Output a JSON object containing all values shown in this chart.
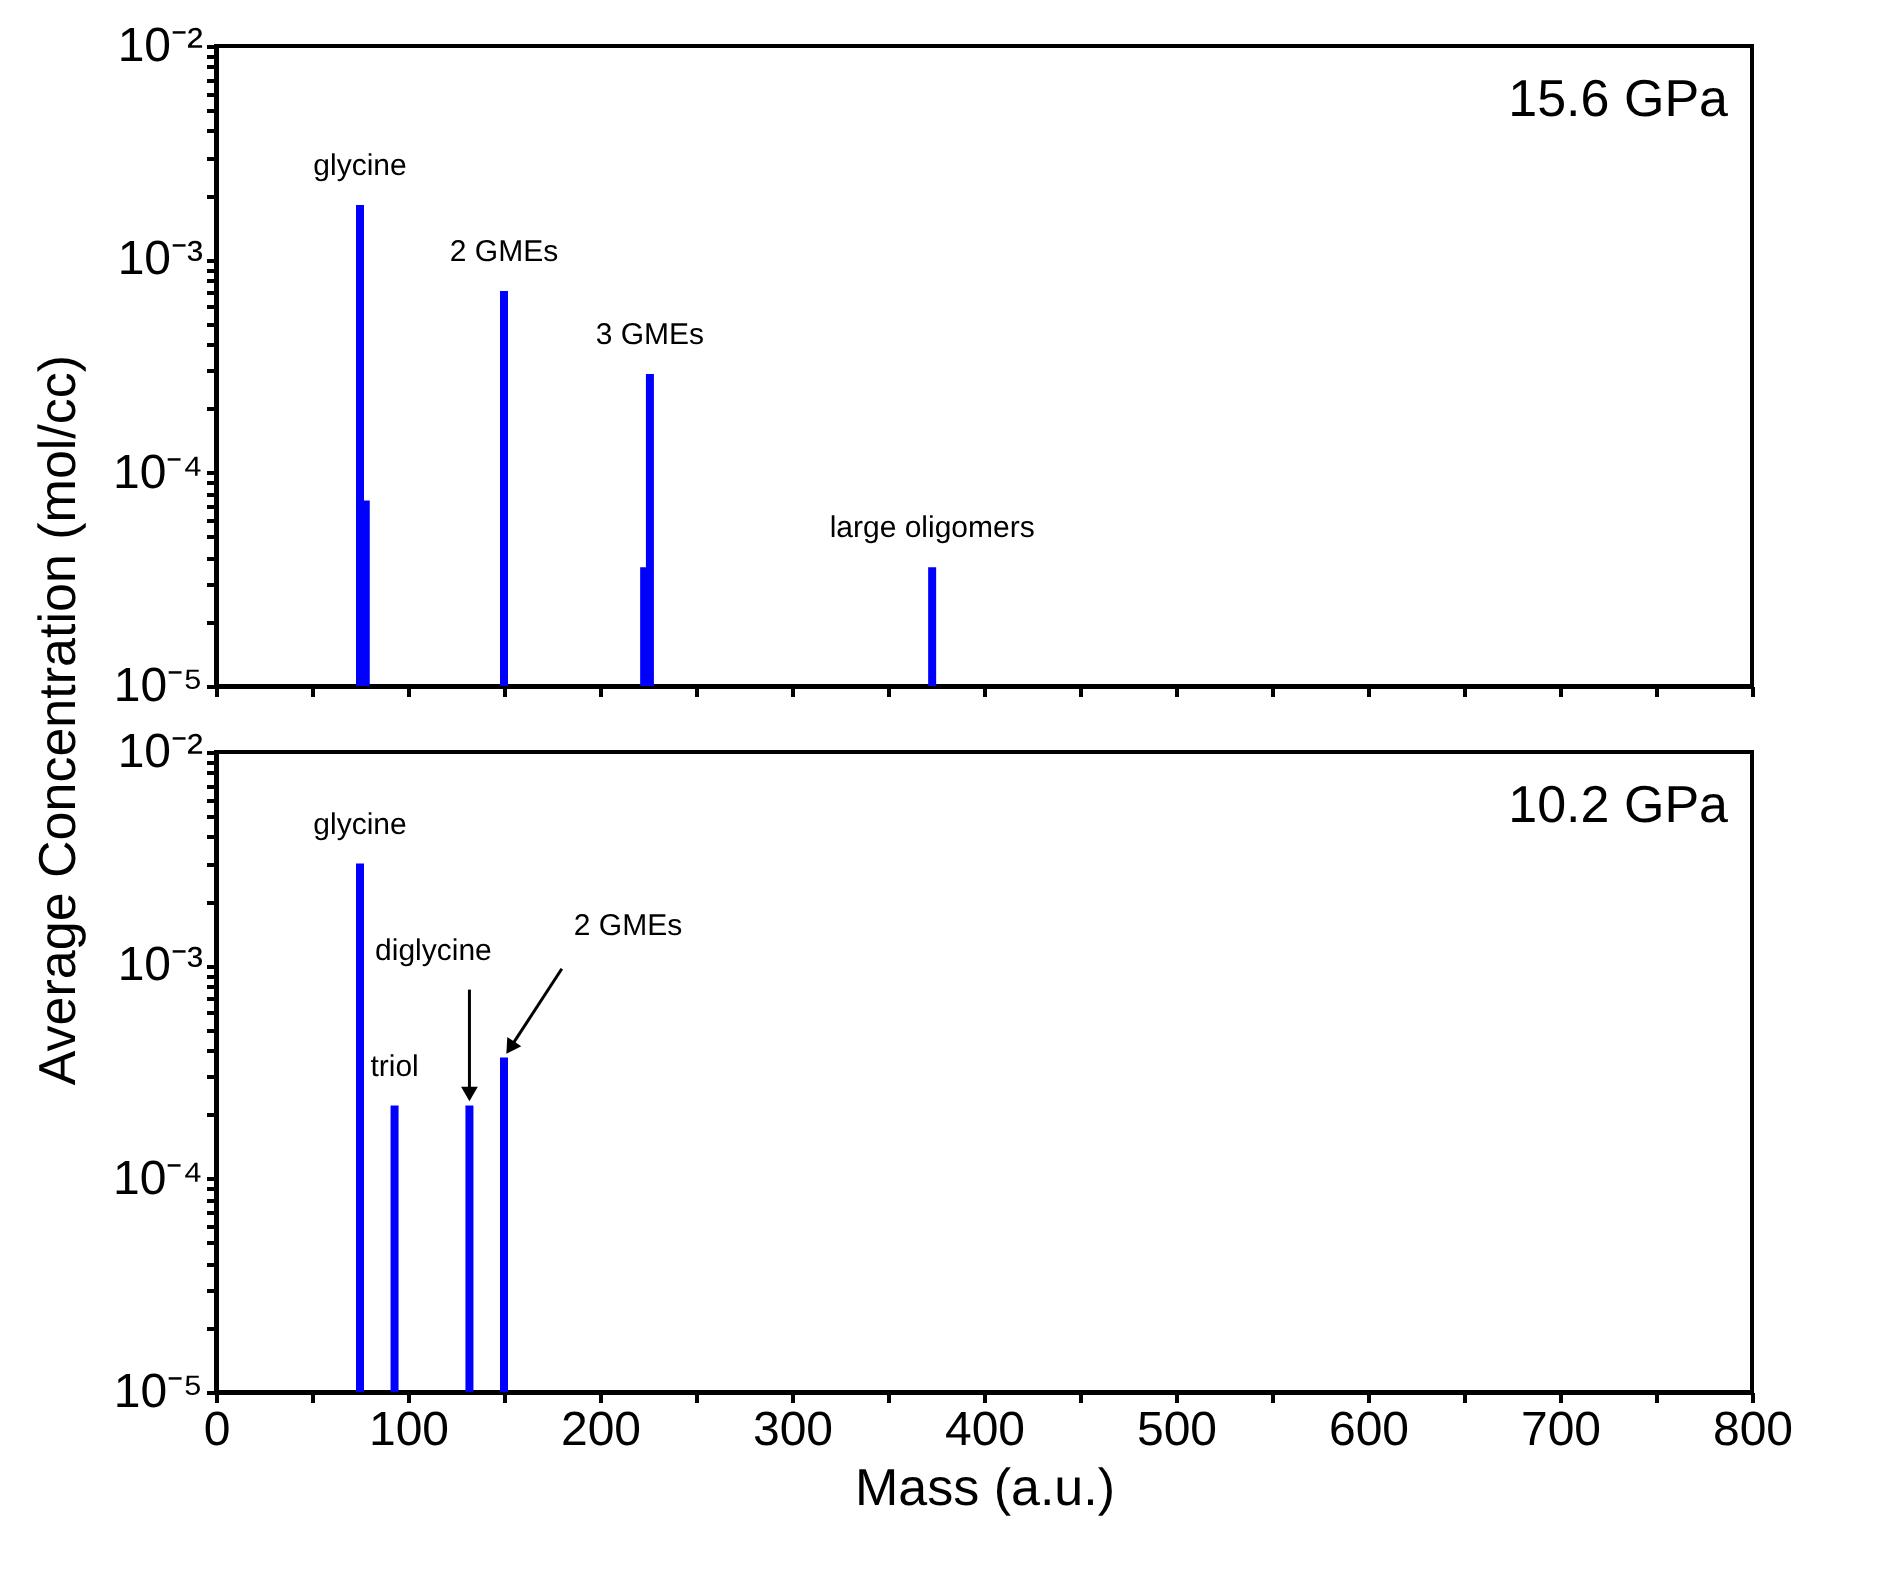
{
  "chart_data": [
    {
      "type": "bar",
      "ylabel": "Average Concentration (mol/cc)",
      "x": [
        75,
        78,
        150,
        223,
        226,
        373
      ],
      "values": [
        0.0018,
        7.4e-05,
        0.00071,
        3.6e-05,
        0.00029,
        3.6e-05
      ],
      "color": "#0000ff",
      "xlim": [
        0,
        800
      ],
      "xticks": [
        0,
        {
          "value": 50,
          "label": null
        },
        100,
        {
          "value": 150,
          "label": null
        },
        200,
        {
          "value": 250,
          "label": null
        },
        300,
        {
          "value": 350,
          "label": null
        },
        400,
        {
          "value": 450,
          "label": null
        },
        500,
        {
          "value": 550,
          "label": null
        },
        600,
        {
          "value": 650,
          "label": null
        },
        700,
        {
          "value": 750,
          "label": null
        },
        800
      ],
      "ylim": [
        1e-05,
        0.01
      ],
      "log": true,
      "yticks": [
        {
          "value": 1e-05,
          "label": "10⁻⁵"
        },
        {
          "value": 2e-05,
          "label": null
        },
        {
          "value": 3e-05,
          "label": null
        },
        {
          "value": 4e-05,
          "label": null
        },
        {
          "value": 5e-05,
          "label": null
        },
        {
          "value": 6e-05,
          "label": null
        },
        {
          "value": 7e-05,
          "label": null
        },
        {
          "value": 8e-05,
          "label": null
        },
        {
          "value": 9e-05,
          "label": null
        },
        {
          "value": 0.0001,
          "label": "10⁻⁴"
        },
        {
          "value": 0.0002,
          "label": null
        },
        {
          "value": 0.0003,
          "label": null
        },
        {
          "value": 0.0004,
          "label": null
        },
        {
          "value": 0.0005,
          "label": null
        },
        {
          "value": 0.0006,
          "label": null
        },
        {
          "value": 0.0007,
          "label": null
        },
        {
          "value": 0.0008,
          "label": null
        },
        {
          "value": 0.0009,
          "label": null
        },
        {
          "value": 0.001,
          "label": "10⁻³"
        },
        {
          "value": 0.002,
          "label": null
        },
        {
          "value": 0.003,
          "label": null
        },
        {
          "value": 0.004,
          "label": null
        },
        {
          "value": 0.005,
          "label": null
        },
        {
          "value": 0.006,
          "label": null
        },
        {
          "value": 0.007,
          "label": null
        },
        {
          "value": 0.008,
          "label": null
        },
        {
          "value": 0.009,
          "label": null
        },
        {
          "value": 0.01,
          "label": "10⁻²"
        }
      ],
      "tick_labels": "y",
      "grid": false,
      "annotations": [
        {
          "text": "glycine",
          "x": 75,
          "y": 0.0018
        },
        {
          "text": "2 GMEs",
          "x": 150,
          "y": 0.00071
        },
        {
          "text": "3 GMEs",
          "x": 226,
          "y": 0.00029
        },
        {
          "text": "large oligomers",
          "x": 373,
          "y": 3.6e-05
        },
        "15.6 GPa"
      ]
    },
    {
      "type": "bar",
      "xlabel": "Mass (a.u.)",
      "x": [
        75,
        93,
        132,
        150
      ],
      "values": [
        0.003,
        0.00022,
        0.00022,
        0.00037
      ],
      "color": "#0000ff",
      "xlim": [
        0,
        800
      ],
      "xticks": [
        0,
        {
          "value": 50,
          "label": null
        },
        100,
        {
          "value": 150,
          "label": null
        },
        200,
        {
          "value": 250,
          "label": null
        },
        300,
        {
          "value": 350,
          "label": null
        },
        400,
        {
          "value": 450,
          "label": null
        },
        500,
        {
          "value": 550,
          "label": null
        },
        600,
        {
          "value": 650,
          "label": null
        },
        700,
        {
          "value": 750,
          "label": null
        },
        800
      ],
      "ylim": [
        1e-05,
        0.01
      ],
      "log": true,
      "yticks": [
        {
          "value": 1e-05,
          "label": "10⁻⁵"
        },
        {
          "value": 2e-05,
          "label": null
        },
        {
          "value": 3e-05,
          "label": null
        },
        {
          "value": 4e-05,
          "label": null
        },
        {
          "value": 5e-05,
          "label": null
        },
        {
          "value": 6e-05,
          "label": null
        },
        {
          "value": 7e-05,
          "label": null
        },
        {
          "value": 8e-05,
          "label": null
        },
        {
          "value": 9e-05,
          "label": null
        },
        {
          "value": 0.0001,
          "label": "10⁻⁴"
        },
        {
          "value": 0.0002,
          "label": null
        },
        {
          "value": 0.0003,
          "label": null
        },
        {
          "value": 0.0004,
          "label": null
        },
        {
          "value": 0.0005,
          "label": null
        },
        {
          "value": 0.0006,
          "label": null
        },
        {
          "value": 0.0007,
          "label": null
        },
        {
          "value": 0.0008,
          "label": null
        },
        {
          "value": 0.0009,
          "label": null
        },
        {
          "value": 0.001,
          "label": "10⁻³"
        },
        {
          "value": 0.002,
          "label": null
        },
        {
          "value": 0.003,
          "label": null
        },
        {
          "value": 0.004,
          "label": null
        },
        {
          "value": 0.005,
          "label": null
        },
        {
          "value": 0.006,
          "label": null
        },
        {
          "value": 0.007,
          "label": null
        },
        {
          "value": 0.008,
          "label": null
        },
        {
          "value": 0.009,
          "label": null
        },
        {
          "value": 0.01,
          "label": "10⁻²"
        }
      ],
      "grid": false,
      "annotations": [
        {
          "text": "glycine",
          "x": 75,
          "y": 0.003
        },
        {
          "text": "triol",
          "x": 93,
          "y": 0.00022
        },
        {
          "text": "diglycine",
          "x": 132,
          "y": 0.00022
        },
        {
          "text": "2 GMEs",
          "x": 150,
          "y": 0.00037
        },
        "10.2 GPa"
      ]
    }
  ]
}
